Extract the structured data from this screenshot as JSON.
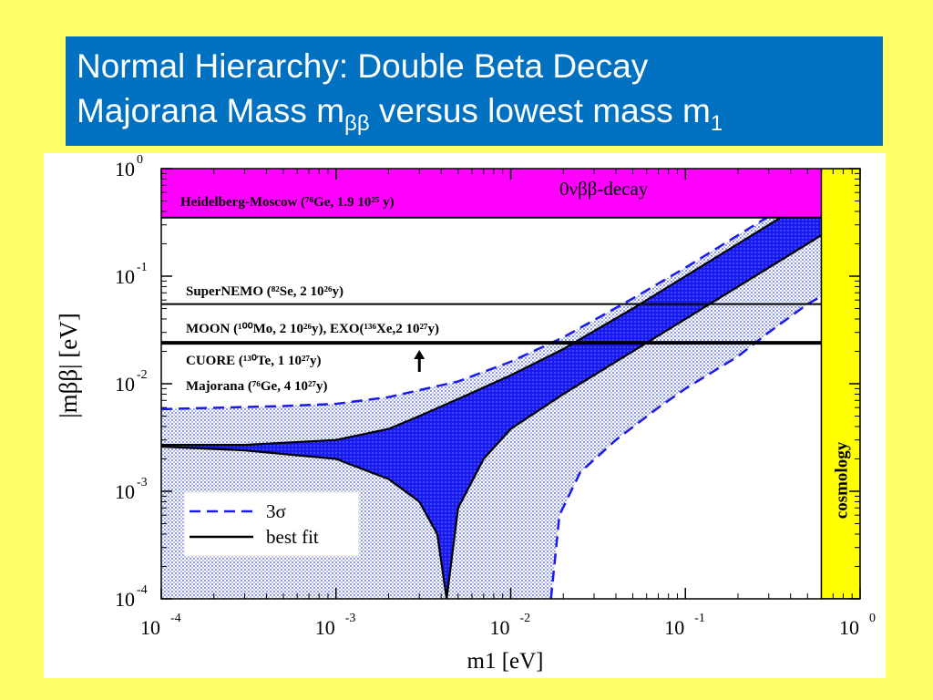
{
  "slide": {
    "title_line1": "Normal Hierarchy: Double Beta Decay",
    "title_line2_pre": "Majorana Mass m",
    "title_line2_sub": "ββ",
    "title_line2_mid": " versus lowest mass m",
    "title_line2_sub2": "1"
  },
  "colors": {
    "background": "#ffff66",
    "title_box": "#0070c0",
    "band_fill": "#1a1aee",
    "region_fill": "#aab4e8",
    "excluded": "#ff00ff",
    "cosmology": "#ffff00",
    "dashed": "#1a1aee"
  },
  "chart_data": {
    "type": "line",
    "x_scale": "log",
    "y_scale": "log",
    "xlim": [
      0.0001,
      1
    ],
    "ylim": [
      0.0001,
      1
    ],
    "xlabel": "m1 [eV]",
    "ylabel": "|mββ| [eV]",
    "x_ticks": [
      {
        "base": "10",
        "exp": "-4",
        "value": 0.0001
      },
      {
        "base": "10",
        "exp": "-3",
        "value": 0.001
      },
      {
        "base": "10",
        "exp": "-2",
        "value": 0.01
      },
      {
        "base": "10",
        "exp": "-1",
        "value": 0.1
      },
      {
        "base": "10",
        "exp": "0",
        "value": 1
      }
    ],
    "y_ticks": [
      {
        "base": "10",
        "exp": "-4",
        "value": 0.0001
      },
      {
        "base": "10",
        "exp": "-3",
        "value": 0.001
      },
      {
        "base": "10",
        "exp": "-2",
        "value": 0.01
      },
      {
        "base": "10",
        "exp": "-1",
        "value": 0.1
      },
      {
        "base": "10",
        "exp": "0",
        "value": 1
      }
    ],
    "series": [
      {
        "name": "best fit",
        "style": "solid",
        "upper": [
          [
            0.0001,
            0.0027
          ],
          [
            0.0003,
            0.0027
          ],
          [
            0.001,
            0.003
          ],
          [
            0.002,
            0.0038
          ],
          [
            0.003,
            0.005
          ],
          [
            0.005,
            0.0072
          ],
          [
            0.01,
            0.012
          ],
          [
            0.02,
            0.021
          ],
          [
            0.05,
            0.05
          ],
          [
            0.1,
            0.1
          ],
          [
            0.2,
            0.2
          ],
          [
            0.4,
            0.4
          ],
          [
            0.6,
            0.58
          ]
        ],
        "lower": [
          [
            0.0001,
            0.0026
          ],
          [
            0.0003,
            0.0024
          ],
          [
            0.001,
            0.002
          ],
          [
            0.002,
            0.0013
          ],
          [
            0.003,
            0.0008
          ],
          [
            0.0038,
            0.0004
          ],
          [
            0.0043,
            0.0001
          ],
          [
            0.005,
            0.0007
          ],
          [
            0.007,
            0.002
          ],
          [
            0.01,
            0.0038
          ],
          [
            0.02,
            0.008
          ],
          [
            0.05,
            0.02
          ],
          [
            0.1,
            0.04
          ],
          [
            0.2,
            0.08
          ],
          [
            0.4,
            0.16
          ],
          [
            0.6,
            0.24
          ]
        ]
      },
      {
        "name": "3σ",
        "style": "dashed",
        "upper": [
          [
            0.0001,
            0.0058
          ],
          [
            0.0005,
            0.0062
          ],
          [
            0.001,
            0.0065
          ],
          [
            0.002,
            0.0075
          ],
          [
            0.005,
            0.0105
          ],
          [
            0.01,
            0.016
          ],
          [
            0.02,
            0.027
          ],
          [
            0.05,
            0.062
          ],
          [
            0.1,
            0.12
          ],
          [
            0.2,
            0.24
          ],
          [
            0.4,
            0.48
          ],
          [
            0.6,
            0.7
          ]
        ],
        "lower": [
          [
            0.017,
            0.0001
          ],
          [
            0.019,
            0.0006
          ],
          [
            0.025,
            0.0015
          ],
          [
            0.04,
            0.003
          ],
          [
            0.07,
            0.006
          ],
          [
            0.1,
            0.009
          ],
          [
            0.2,
            0.018
          ],
          [
            0.3,
            0.03
          ],
          [
            0.5,
            0.055
          ],
          [
            0.6,
            0.065
          ]
        ]
      }
    ],
    "excluded_band": {
      "label_name": "Heidelberg-Moscow",
      "label_rest": " (⁷⁶Ge, 1.9 10²⁵ y)",
      "label_right": "0νββ-decay",
      "y_min": 0.35,
      "y_max": 1
    },
    "cosmology_band": {
      "label": "cosmology",
      "x_min": 0.6,
      "x_max": 1
    },
    "experiments": [
      {
        "label": "SuperNEMO (⁸²Se, 2 10²⁶y)",
        "y": 0.055
      },
      {
        "label": "MOON (¹⁰⁰Mo, 2 10²⁶y), EXO(¹³⁶Xe,2 10²⁷y)",
        "y": 0.024
      },
      {
        "label": "CUORE (¹³⁰Te, 1 10²⁷y)",
        "y": 0.023
      },
      {
        "label": "Majorana (⁷⁶Ge, 4 10²⁷y)",
        "y": 0.023
      }
    ],
    "arrow_x": 0.003,
    "legend": [
      {
        "label": "3σ",
        "style": "dashed"
      },
      {
        "label": "best fit",
        "style": "solid"
      }
    ]
  }
}
